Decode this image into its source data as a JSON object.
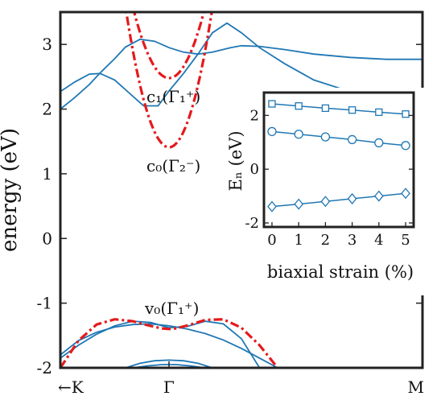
{
  "chart_data": [
    {
      "type": "line",
      "title": "",
      "ylabel": "energy (eV)",
      "xlabel": "",
      "ylim": [
        -2,
        3.5
      ],
      "yticks": [
        -2,
        -1,
        0,
        1,
        2,
        3
      ],
      "xticks": [
        {
          "pos": 0,
          "label": "←K"
        },
        {
          "pos": 0.3,
          "label": "Γ"
        },
        {
          "pos": 1,
          "label": "M"
        }
      ],
      "grid": false,
      "colors": {
        "bands": "#1f77b4",
        "fit": "#e41a1c"
      },
      "annotations": [
        {
          "id": "c1",
          "text": "c₁(Γ₁⁺)"
        },
        {
          "id": "c0",
          "text": "c₀(Γ₂⁻)"
        },
        {
          "id": "v0",
          "text": "v₀(Γ₁⁺)"
        }
      ],
      "series": [
        {
          "x": [
            0,
            0.04,
            0.08,
            0.11,
            0.15,
            0.18,
            0.22,
            0.26,
            0.3,
            0.34,
            0.38,
            0.42,
            0.47,
            0.5,
            0.55,
            0.62,
            0.7,
            0.8,
            0.9,
            1.0
          ],
          "y": [
            2.0,
            2.18,
            2.38,
            2.56,
            2.78,
            2.96,
            3.08,
            3.05,
            2.95,
            2.88,
            2.85,
            2.88,
            2.95,
            2.98,
            2.97,
            2.92,
            2.85,
            2.8,
            2.77,
            2.77
          ]
        },
        {
          "x": [
            0,
            0.04,
            0.08,
            0.11,
            0.15,
            0.19,
            0.23,
            0.27,
            0.3,
            0.34,
            0.38,
            0.42,
            0.46,
            0.5,
            0.55,
            0.62,
            0.7,
            0.8,
            0.9,
            1.0
          ],
          "y": [
            2.27,
            2.42,
            2.54,
            2.55,
            2.45,
            2.25,
            2.05,
            2.05,
            2.28,
            2.55,
            2.85,
            3.18,
            3.33,
            3.18,
            2.95,
            2.7,
            2.45,
            2.27,
            2.13,
            2.08
          ]
        },
        {
          "x": [
            0,
            0.05,
            0.1,
            0.15,
            0.2,
            0.25,
            0.3,
            0.35,
            0.4,
            0.45,
            0.5,
            0.55,
            0.6
          ],
          "y": [
            -1.8,
            -1.58,
            -1.45,
            -1.37,
            -1.33,
            -1.32,
            -1.35,
            -1.4,
            -1.47,
            -1.57,
            -1.7,
            -1.85,
            -2.0
          ]
        },
        {
          "x": [
            0,
            0.05,
            0.1,
            0.15,
            0.2,
            0.25,
            0.3,
            0.35,
            0.4,
            0.45,
            0.5,
            0.55
          ],
          "y": [
            -1.85,
            -1.65,
            -1.48,
            -1.35,
            -1.28,
            -1.3,
            -1.38,
            -1.36,
            -1.28,
            -1.32,
            -1.55,
            -2.0
          ]
        },
        {
          "x": [
            0.18,
            0.22,
            0.26,
            0.3,
            0.34,
            0.38,
            0.42
          ],
          "y": [
            -2.0,
            -1.93,
            -1.89,
            -1.88,
            -1.89,
            -1.93,
            -2.0
          ]
        },
        {
          "x": [
            0.2,
            0.24,
            0.28,
            0.3,
            0.32,
            0.36,
            0.4
          ],
          "y": [
            -2.0,
            -1.97,
            -1.95,
            -1.95,
            -1.95,
            -1.97,
            -2.0
          ]
        }
      ],
      "fits": [
        {
          "id": "c1",
          "y0": 2.48,
          "k": 110,
          "xrange": [
            0.2,
            0.41
          ]
        },
        {
          "id": "c0",
          "y0": 1.41,
          "k": 150,
          "xrange": [
            0.15,
            0.45
          ]
        },
        {
          "id": "v0",
          "x": [
            0,
            0.05,
            0.1,
            0.15,
            0.2,
            0.24,
            0.28,
            0.3,
            0.32,
            0.36,
            0.4,
            0.45,
            0.5,
            0.55,
            0.6
          ],
          "y": [
            -2.0,
            -1.58,
            -1.33,
            -1.25,
            -1.28,
            -1.34,
            -1.39,
            -1.4,
            -1.39,
            -1.33,
            -1.26,
            -1.25,
            -1.38,
            -1.65,
            -2.0
          ]
        }
      ]
    },
    {
      "type": "line",
      "title": "",
      "xlabel": "biaxial strain (%)",
      "ylabel": "Eₙ (eV)",
      "xlim": [
        -0.3,
        5.3
      ],
      "ylim": [
        -2.15,
        2.85
      ],
      "xticks": [
        0,
        1,
        2,
        3,
        4,
        5
      ],
      "yticks": [
        -2,
        0,
        2
      ],
      "grid": false,
      "series": [
        {
          "marker": "square",
          "x": [
            0,
            1,
            2,
            3,
            4,
            5
          ],
          "y": [
            2.43,
            2.35,
            2.27,
            2.2,
            2.12,
            2.05
          ]
        },
        {
          "marker": "circle",
          "x": [
            0,
            1,
            2,
            3,
            4,
            5
          ],
          "y": [
            1.4,
            1.3,
            1.2,
            1.1,
            0.98,
            0.88
          ]
        },
        {
          "marker": "diamond",
          "x": [
            0,
            1,
            2,
            3,
            4,
            5
          ],
          "y": [
            -1.39,
            -1.3,
            -1.2,
            -1.1,
            -1.0,
            -0.9
          ]
        }
      ]
    }
  ]
}
